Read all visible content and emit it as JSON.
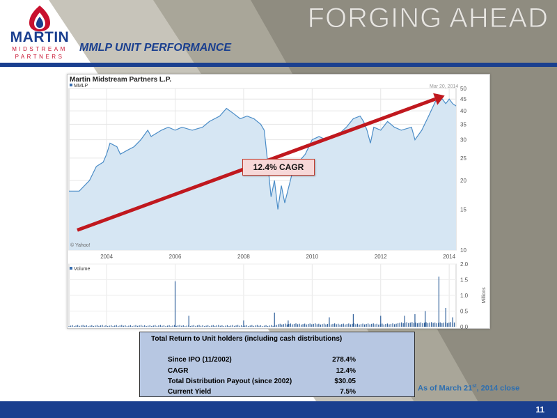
{
  "header": {
    "title": "FORGING AHEAD",
    "subtitle": "MMLP UNIT PERFORMANCE",
    "logo": {
      "word": "MARTIN",
      "line1": "MIDSTREAM",
      "line2": "PARTNERS"
    }
  },
  "chart_data": {
    "type": "area",
    "title": "Martin Midstream Partners L.P.",
    "series_label": "MMLP",
    "date_label": "Mar 20, 2014",
    "credit": "© Yahoo!",
    "x_ticks": [
      "2004",
      "2006",
      "2008",
      "2010",
      "2012",
      "2014"
    ],
    "price_axis": {
      "scale": "log",
      "ticks": [
        10,
        15,
        20,
        25,
        30,
        35,
        40,
        45,
        50
      ],
      "ylim": [
        10,
        50
      ]
    },
    "price_points": [
      {
        "x": 2002.9,
        "y": 18
      },
      {
        "x": 2003.2,
        "y": 18
      },
      {
        "x": 2003.5,
        "y": 20
      },
      {
        "x": 2003.7,
        "y": 23
      },
      {
        "x": 2003.9,
        "y": 24
      },
      {
        "x": 2004.0,
        "y": 26
      },
      {
        "x": 2004.1,
        "y": 29
      },
      {
        "x": 2004.3,
        "y": 28
      },
      {
        "x": 2004.4,
        "y": 26
      },
      {
        "x": 2004.6,
        "y": 27
      },
      {
        "x": 2004.8,
        "y": 28
      },
      {
        "x": 2005.0,
        "y": 30
      },
      {
        "x": 2005.2,
        "y": 33
      },
      {
        "x": 2005.3,
        "y": 31
      },
      {
        "x": 2005.6,
        "y": 33
      },
      {
        "x": 2005.8,
        "y": 34
      },
      {
        "x": 2006.0,
        "y": 33
      },
      {
        "x": 2006.2,
        "y": 34
      },
      {
        "x": 2006.5,
        "y": 33
      },
      {
        "x": 2006.8,
        "y": 34
      },
      {
        "x": 2007.0,
        "y": 36
      },
      {
        "x": 2007.3,
        "y": 38
      },
      {
        "x": 2007.5,
        "y": 41
      },
      {
        "x": 2007.7,
        "y": 39
      },
      {
        "x": 2007.9,
        "y": 37
      },
      {
        "x": 2008.1,
        "y": 38
      },
      {
        "x": 2008.3,
        "y": 37
      },
      {
        "x": 2008.5,
        "y": 35
      },
      {
        "x": 2008.6,
        "y": 33
      },
      {
        "x": 2008.7,
        "y": 24
      },
      {
        "x": 2008.8,
        "y": 17
      },
      {
        "x": 2008.9,
        "y": 20
      },
      {
        "x": 2009.0,
        "y": 15
      },
      {
        "x": 2009.1,
        "y": 19
      },
      {
        "x": 2009.2,
        "y": 16
      },
      {
        "x": 2009.4,
        "y": 21
      },
      {
        "x": 2009.6,
        "y": 24
      },
      {
        "x": 2009.8,
        "y": 26
      },
      {
        "x": 2010.0,
        "y": 30
      },
      {
        "x": 2010.2,
        "y": 31
      },
      {
        "x": 2010.4,
        "y": 30
      },
      {
        "x": 2010.7,
        "y": 31
      },
      {
        "x": 2011.0,
        "y": 34
      },
      {
        "x": 2011.2,
        "y": 37
      },
      {
        "x": 2011.4,
        "y": 38
      },
      {
        "x": 2011.5,
        "y": 36
      },
      {
        "x": 2011.6,
        "y": 33
      },
      {
        "x": 2011.7,
        "y": 29
      },
      {
        "x": 2011.8,
        "y": 34
      },
      {
        "x": 2012.0,
        "y": 33
      },
      {
        "x": 2012.2,
        "y": 36
      },
      {
        "x": 2012.4,
        "y": 34
      },
      {
        "x": 2012.6,
        "y": 33
      },
      {
        "x": 2012.9,
        "y": 34
      },
      {
        "x": 2013.0,
        "y": 30
      },
      {
        "x": 2013.2,
        "y": 33
      },
      {
        "x": 2013.4,
        "y": 38
      },
      {
        "x": 2013.6,
        "y": 44
      },
      {
        "x": 2013.8,
        "y": 45
      },
      {
        "x": 2013.9,
        "y": 43
      },
      {
        "x": 2014.0,
        "y": 45
      },
      {
        "x": 2014.1,
        "y": 43
      },
      {
        "x": 2014.2,
        "y": 42
      }
    ],
    "volume_label": "Volume",
    "volume_axis": {
      "unit": "Millions",
      "ticks": [
        "0.0",
        "0.5",
        "1.0",
        "1.5",
        "2.0"
      ],
      "ylim": [
        0,
        2
      ]
    },
    "volume_spikes": [
      {
        "x": 2006.0,
        "y": 1.45
      },
      {
        "x": 2006.4,
        "y": 0.35
      },
      {
        "x": 2008.0,
        "y": 0.2
      },
      {
        "x": 2008.9,
        "y": 0.45
      },
      {
        "x": 2009.3,
        "y": 0.2
      },
      {
        "x": 2010.5,
        "y": 0.3
      },
      {
        "x": 2011.2,
        "y": 0.4
      },
      {
        "x": 2012.0,
        "y": 0.35
      },
      {
        "x": 2012.7,
        "y": 0.35
      },
      {
        "x": 2013.0,
        "y": 0.4
      },
      {
        "x": 2013.3,
        "y": 0.5
      },
      {
        "x": 2013.7,
        "y": 1.6
      },
      {
        "x": 2013.9,
        "y": 0.6
      },
      {
        "x": 2014.1,
        "y": 0.3
      }
    ],
    "trend": {
      "label": "12.4% CAGR",
      "from": {
        "x": 2002.9,
        "y": 12.2
      },
      "to": {
        "x": 2014.0,
        "y": 45
      },
      "color": "#c0181e"
    },
    "fill_color": "#d6e6f3",
    "line_color": "#4a8cc7"
  },
  "returns_table": {
    "title": "Total Return to Unit holders (including cash distributions)",
    "rows": [
      {
        "label": "Since IPO (11/2002)",
        "value": "278.4%"
      },
      {
        "label": "CAGR",
        "value": "12.4%"
      },
      {
        "label": "Total Distribution Payout (since 2002)",
        "value": "$30.05"
      },
      {
        "label": "Current Yield",
        "value": "7.5%"
      }
    ]
  },
  "footnote": {
    "text": "As of March 21",
    "sup": "st",
    "tail": ", 2014 close"
  },
  "page_number": "11",
  "colors": {
    "brand_blue": "#1a3f8f",
    "brand_red": "#c8102e",
    "table_bg": "#b7c7e2"
  }
}
